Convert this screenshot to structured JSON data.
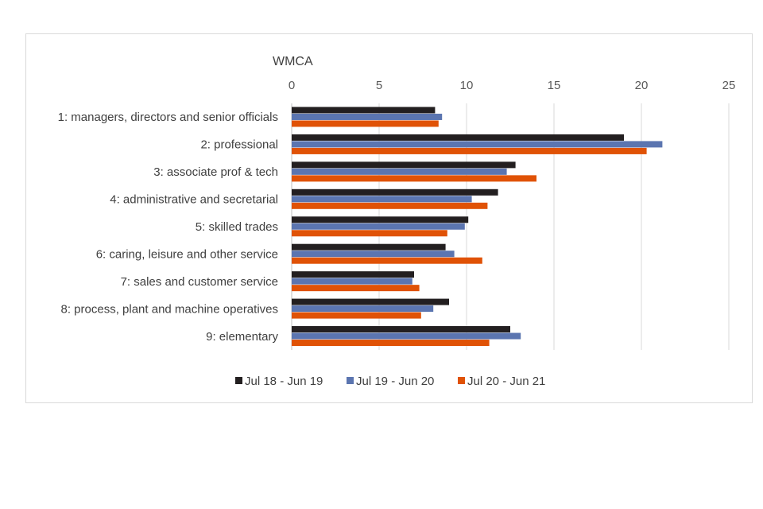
{
  "chart_data": {
    "type": "bar",
    "orientation": "horizontal",
    "title": "WMCA",
    "xlabel": "",
    "ylabel": "",
    "xlim": [
      0,
      25
    ],
    "x_ticks": [
      0,
      5,
      10,
      15,
      20,
      25
    ],
    "grid": true,
    "legend_position": "bottom",
    "categories": [
      "1: managers, directors and senior officials",
      "2: professional",
      "3: associate prof & tech",
      "4: administrative and secretarial",
      "5: skilled trades",
      "6: caring, leisure and other service",
      "7: sales and customer service",
      "8: process, plant and machine operatives",
      "9: elementary"
    ],
    "series": [
      {
        "name": "Jul 18 - Jun 19",
        "color": "#231f20",
        "values": [
          8.2,
          19.0,
          12.8,
          11.8,
          10.1,
          8.8,
          7.0,
          9.0,
          12.5
        ]
      },
      {
        "name": "Jul 19 - Jun 20",
        "color": "#5b75b0",
        "values": [
          8.6,
          21.2,
          12.3,
          10.3,
          9.9,
          9.3,
          6.9,
          8.1,
          13.1
        ]
      },
      {
        "name": "Jul 20 - Jun 21",
        "color": "#e05206",
        "values": [
          8.4,
          20.3,
          14.0,
          11.2,
          8.9,
          10.9,
          7.3,
          7.4,
          11.3
        ]
      }
    ]
  }
}
